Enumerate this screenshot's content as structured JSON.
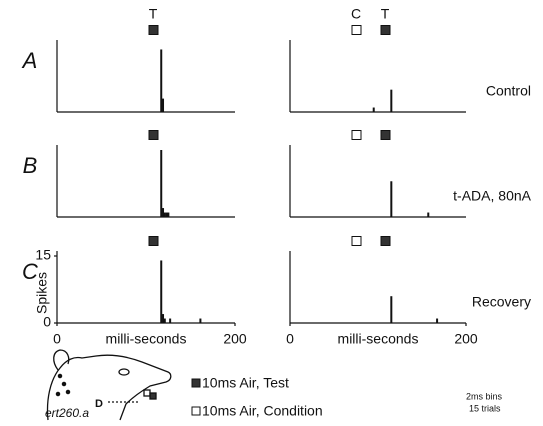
{
  "chart_data": [
    {
      "type": "bar",
      "xlim": [
        0,
        200
      ],
      "ylim": [
        0,
        15
      ],
      "x": [
        116,
        118
      ],
      "values": [
        14,
        3
      ]
    },
    {
      "type": "bar",
      "xlim": [
        0,
        200
      ],
      "ylim": [
        0,
        15
      ],
      "x": [
        94,
        114
      ],
      "values": [
        1,
        5
      ]
    },
    {
      "type": "bar",
      "xlim": [
        0,
        200
      ],
      "ylim": [
        0,
        15
      ],
      "x": [
        116,
        118,
        120,
        122,
        124
      ],
      "values": [
        15,
        2,
        1,
        1,
        1
      ]
    },
    {
      "type": "bar",
      "xlim": [
        0,
        200
      ],
      "ylim": [
        0,
        15
      ],
      "x": [
        114,
        156
      ],
      "values": [
        8,
        1
      ]
    },
    {
      "type": "bar",
      "xlim": [
        0,
        200
      ],
      "ylim": [
        0,
        15
      ],
      "x": [
        116,
        118,
        120,
        126,
        160
      ],
      "values": [
        14,
        2,
        1,
        1,
        1
      ],
      "xticks": [
        0,
        200
      ],
      "xlabel": "milli-seconds",
      "yticks": [
        0,
        15
      ],
      "ylabel": "Spikes"
    },
    {
      "type": "bar",
      "xlim": [
        0,
        200
      ],
      "ylim": [
        0,
        15
      ],
      "x": [
        114,
        166
      ],
      "values": [
        6,
        1
      ],
      "xticks": [
        0,
        200
      ],
      "xlabel": "milli-seconds"
    }
  ],
  "rows": [
    {
      "label": "A",
      "condition": "Control"
    },
    {
      "label": "B",
      "condition": "t-ADA, 80nA"
    },
    {
      "label": "C",
      "condition": "Recovery"
    }
  ],
  "stimulus_labels": {
    "test": "T",
    "condition": "C"
  },
  "legend": {
    "test": "10ms Air, Test",
    "condition": "10ms Air, Condition"
  },
  "diagram": {
    "label": "D",
    "id": "ert260.a"
  },
  "notes": {
    "bins": "2ms bins",
    "trials": "15 trials"
  }
}
